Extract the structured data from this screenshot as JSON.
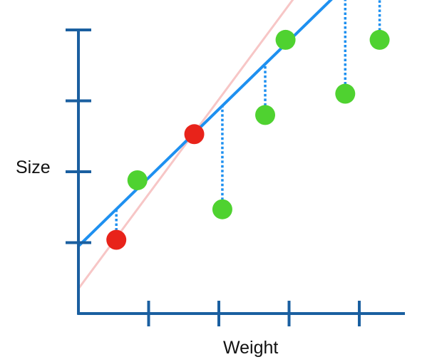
{
  "chart_data": {
    "type": "scatter",
    "title": "",
    "xlabel": "Weight",
    "ylabel": "Size",
    "xlim": [
      0,
      4.6
    ],
    "ylim": [
      0,
      4
    ],
    "xticks": [
      1,
      2,
      3,
      4
    ],
    "yticks": [
      1,
      2,
      3,
      4
    ],
    "grid": false,
    "legend": "none",
    "series": [
      {
        "role": "red",
        "color": "#e8231a",
        "points": [
          [
            0.54,
            1.04
          ],
          [
            1.65,
            2.53
          ]
        ]
      },
      {
        "role": "green",
        "color": "#4fd230",
        "points": [
          [
            0.84,
            1.88
          ],
          [
            2.05,
            1.47
          ],
          [
            2.66,
            2.8
          ],
          [
            2.95,
            3.86
          ],
          [
            3.8,
            3.1
          ],
          [
            4.29,
            3.86
          ]
        ]
      }
    ],
    "lines": [
      {
        "role": "fit",
        "color": "#1e90f0",
        "intercept": 0.95,
        "slope": 0.966
      },
      {
        "role": "red-fit",
        "color": "#f7c6c6",
        "intercept": 0.35,
        "slope": 1.335
      }
    ],
    "residual_color": "#1e90f0",
    "axis_color": "#1a5fa0"
  }
}
